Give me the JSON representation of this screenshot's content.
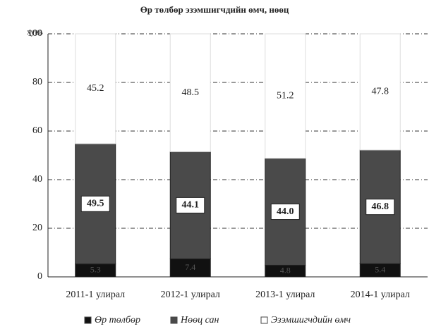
{
  "chart_data": {
    "type": "stacked_bar",
    "title": "Өр төлбөр эзэмшигчдийн өмч, нөөц",
    "y_label": "хувь",
    "categories": [
      "2011-1 улирал",
      "2012-1 улирал",
      "2013-1 улирал",
      "2014-1 улирал"
    ],
    "series": [
      {
        "name": "Өр төлбөр",
        "color": "#111111",
        "values": [
          5.3,
          7.4,
          4.8,
          5.4
        ]
      },
      {
        "name": "Нөөц сан",
        "color": "#4a4a4a",
        "values": [
          49.5,
          44.1,
          44.0,
          46.8
        ],
        "value_labels": [
          "49.5",
          "44.1",
          "44.0",
          "46.8"
        ]
      },
      {
        "name": "Эзэмшигчдийн өмч",
        "color": "#ffffff",
        "values": [
          45.2,
          48.5,
          51.2,
          47.8
        ]
      }
    ],
    "ylim": [
      0,
      100
    ],
    "yticks": [
      0,
      20,
      40,
      60,
      80,
      100
    ],
    "grid": true,
    "legend": "bottom"
  }
}
